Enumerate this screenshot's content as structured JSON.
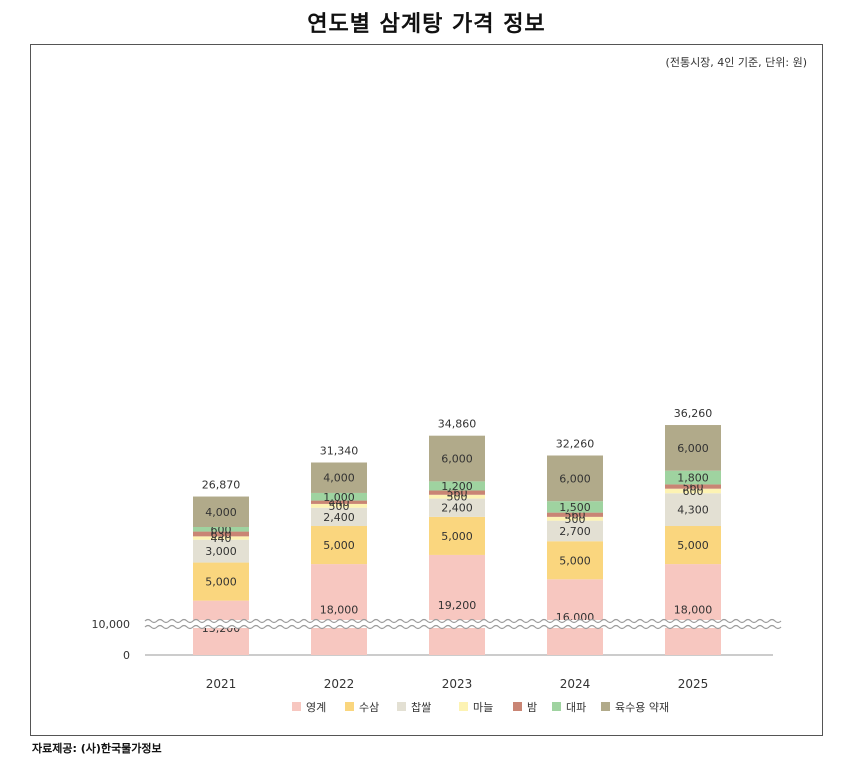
{
  "title": "연도별 삼계탕 가격 정보",
  "unit_note": "(전통시장, 4인 기준, 단위: 원)",
  "source": "자료제공: (사)한국물가정보",
  "chart_data": {
    "type": "bar",
    "stacked": true,
    "axis_break": true,
    "categories": [
      "2021",
      "2022",
      "2023",
      "2024",
      "2025"
    ],
    "totals": [
      "26,870",
      "31,340",
      "34,860",
      "32,260",
      "36,260"
    ],
    "y_ticks": [
      "0",
      "10,000"
    ],
    "series": [
      {
        "name": "영계",
        "color": "#f7c7c0",
        "values": [
          13200,
          18000,
          19200,
          16000,
          18000
        ]
      },
      {
        "name": "수삼",
        "color": "#fad67e",
        "values": [
          5000,
          5000,
          5000,
          5000,
          5000
        ]
      },
      {
        "name": "찹쌀",
        "color": "#e3e0d3",
        "values": [
          3000,
          2400,
          2400,
          2700,
          4300
        ]
      },
      {
        "name": "마늘",
        "color": "#fdf3b3",
        "values": [
          440,
          500,
          500,
          500,
          600
        ]
      },
      {
        "name": "밤",
        "color": "#c98574",
        "values": [
          630,
          440,
          560,
          560,
          560
        ]
      },
      {
        "name": "대파",
        "color": "#9fd3a0",
        "values": [
          600,
          1000,
          1200,
          1500,
          1800
        ]
      },
      {
        "name": "육수용 약재",
        "color": "#b1aa8a",
        "values": [
          4000,
          4000,
          6000,
          6000,
          6000
        ]
      }
    ]
  }
}
